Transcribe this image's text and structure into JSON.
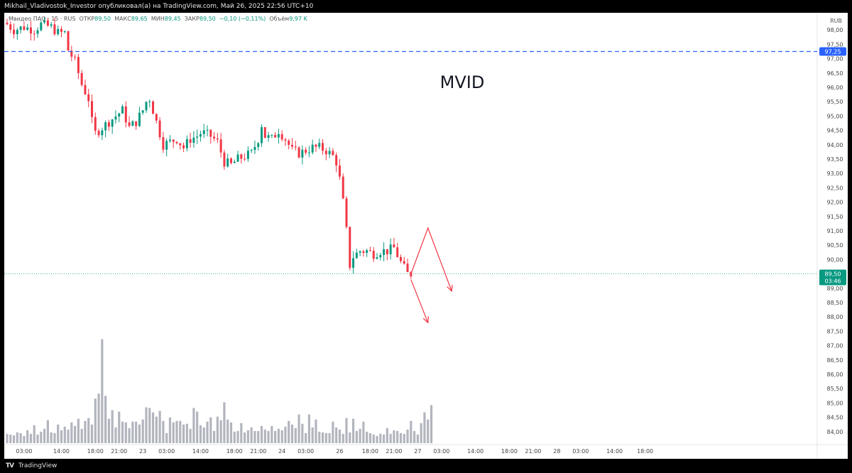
{
  "header": {
    "publisher_text": "Mikhail_Vladivostok_Investor опубликовал(а) на TradingView.com, Май 26, 2025 22:56 UTC+10"
  },
  "legend": {
    "symbol": "Мвидео ПАО · 15 · RUS",
    "open_label": "ОТКР",
    "open_value": "89,50",
    "high_label": "МАКС",
    "high_value": "89,65",
    "low_label": "МИН",
    "low_value": "89,45",
    "close_label": "ЗАКР",
    "close_value": "89,50",
    "change_value": "−0,10 (−0,11%)",
    "volume_label": "Объём",
    "volume_value": "9,97 K"
  },
  "currency": "RUB",
  "footer": {
    "logo": "TV",
    "brand": "TradingView"
  },
  "colors": {
    "up": "#089981",
    "down": "#f23645",
    "volume": "#b2b5be",
    "level_line": "#2962ff",
    "price_line": "#089981",
    "annotation": "#f23645"
  },
  "chart_data": {
    "type": "candlestick",
    "title": "MVID",
    "ylim": [
      83.6,
      98.5
    ],
    "yticks": [
      "98,00",
      "97,50",
      "97,00",
      "96,50",
      "96,00",
      "95,50",
      "95,00",
      "94,50",
      "94,00",
      "93,50",
      "93,00",
      "92,50",
      "92,00",
      "91,50",
      "91,00",
      "90,50",
      "90,00",
      "89,50",
      "89,00",
      "88,50",
      "88,00",
      "87,50",
      "87,00",
      "86,50",
      "86,00",
      "85,50",
      "85,00",
      "84,50",
      "84,00"
    ],
    "ytick_values": [
      98.0,
      97.5,
      97.0,
      96.5,
      96.0,
      95.5,
      95.0,
      94.5,
      94.0,
      93.5,
      93.0,
      92.5,
      92.0,
      91.5,
      91.0,
      90.5,
      90.0,
      89.5,
      89.0,
      88.5,
      88.0,
      87.5,
      87.0,
      86.5,
      86.0,
      85.5,
      85.0,
      84.5,
      84.0
    ],
    "xticks": [
      {
        "label": "03:00",
        "i": 5
      },
      {
        "label": "14:00",
        "i": 16
      },
      {
        "label": "18:00",
        "i": 26
      },
      {
        "label": "21:00",
        "i": 33
      },
      {
        "label": "23",
        "i": 40
      },
      {
        "label": "03:00",
        "i": 47
      },
      {
        "label": "14:00",
        "i": 57
      },
      {
        "label": "18:00",
        "i": 67
      },
      {
        "label": "21:00",
        "i": 74
      },
      {
        "label": "24",
        "i": 81
      },
      {
        "label": "03:00",
        "i": 88
      },
      {
        "label": "26",
        "i": 98
      },
      {
        "label": "18:00",
        "i": 107
      },
      {
        "label": "21:00",
        "i": 114
      },
      {
        "label": "27",
        "i": 121
      },
      {
        "label": "03:00",
        "i": 128
      },
      {
        "label": "14:00",
        "i": 138
      },
      {
        "label": "18:00",
        "i": 148
      },
      {
        "label": "21:00",
        "i": 155
      },
      {
        "label": "28",
        "i": 162
      },
      {
        "label": "03:00",
        "i": 169
      },
      {
        "label": "14:00",
        "i": 179
      },
      {
        "label": "18:00",
        "i": 188
      }
    ],
    "level_line": {
      "value": 97.25,
      "label": "97,25"
    },
    "last_price": {
      "value": 89.5,
      "label": "89,50",
      "countdown": "03:46"
    },
    "close_path": [
      [
        0,
        98.2
      ],
      [
        2,
        98.0
      ],
      [
        5,
        98.1
      ],
      [
        8,
        98.0
      ],
      [
        10,
        98.2
      ],
      [
        13,
        98.1
      ],
      [
        15,
        97.9
      ],
      [
        17,
        97.9
      ],
      [
        18,
        97.3
      ],
      [
        20,
        96.9
      ],
      [
        22,
        96.1
      ],
      [
        24,
        95.6
      ],
      [
        25,
        94.8
      ],
      [
        26,
        94.4
      ],
      [
        28,
        94.6
      ],
      [
        30,
        94.8
      ],
      [
        32,
        95.0
      ],
      [
        34,
        95.2
      ],
      [
        36,
        94.6
      ],
      [
        38,
        94.8
      ],
      [
        40,
        95.2
      ],
      [
        41,
        95.5
      ],
      [
        42,
        95.6
      ],
      [
        43,
        95.2
      ],
      [
        45,
        94.4
      ],
      [
        46,
        94.0
      ],
      [
        48,
        94.1
      ],
      [
        50,
        94.2
      ],
      [
        52,
        93.9
      ],
      [
        54,
        94.2
      ],
      [
        56,
        94.3
      ],
      [
        57,
        94.4
      ],
      [
        58,
        94.4
      ],
      [
        60,
        94.3
      ],
      [
        62,
        94.1
      ],
      [
        64,
        93.4
      ],
      [
        66,
        93.3
      ],
      [
        68,
        93.5
      ],
      [
        70,
        93.6
      ],
      [
        72,
        93.7
      ],
      [
        74,
        94.2
      ],
      [
        75,
        94.7
      ],
      [
        76,
        94.3
      ],
      [
        78,
        94.2
      ],
      [
        80,
        94.5
      ],
      [
        82,
        94.2
      ],
      [
        84,
        93.8
      ],
      [
        86,
        93.7
      ],
      [
        88,
        93.8
      ],
      [
        90,
        93.9
      ],
      [
        92,
        93.9
      ],
      [
        94,
        93.8
      ],
      [
        96,
        93.6
      ],
      [
        97,
        93.4
      ],
      [
        98,
        92.8
      ],
      [
        99,
        92.0
      ],
      [
        100,
        91.0
      ],
      [
        101,
        89.8
      ],
      [
        102,
        90.1
      ],
      [
        104,
        90.3
      ],
      [
        106,
        90.3
      ],
      [
        108,
        90.2
      ],
      [
        110,
        90.3
      ],
      [
        112,
        90.3
      ],
      [
        114,
        90.4
      ],
      [
        116,
        89.9
      ],
      [
        118,
        89.5
      ],
      [
        119,
        89.5
      ]
    ],
    "volume_heights": [
      1.3,
      1.2,
      1.1,
      1.5,
      1.4,
      1.0,
      1.8,
      1.3,
      2.5,
      1.2,
      1.6,
      2.0,
      3.2,
      1.5,
      1.4,
      2.6,
      1.8,
      2.3,
      1.9,
      2.9,
      2.4,
      3.4,
      2.0,
      3.1,
      3.5,
      2.6,
      6.2,
      6.9,
      14.5,
      6.6,
      3.4,
      4.6,
      2.2,
      4.4,
      3.0,
      2.9,
      2.1,
      3.0,
      3.0,
      2.6,
      3.3,
      5.0,
      4.9,
      4.3,
      3.7,
      4.5,
      3.1,
      1.4,
      3.6,
      2.9,
      3.1,
      3.1,
      2.6,
      2.7,
      2.0,
      4.9,
      4.4,
      2.5,
      2.2,
      3.0,
      3.6,
      1.7,
      3.7,
      3.2,
      5.7,
      3.3,
      2.9,
      1.6,
      1.7,
      2.8,
      1.5,
      1.8,
      2.2,
      1.7,
      1.7,
      2.4,
      1.9,
      1.7,
      2.4,
      1.7,
      2.0,
      1.8,
      2.3,
      3.1,
      2.6,
      2.1,
      4.0,
      2.7,
      1.4,
      4.0,
      2.2,
      3.3,
      1.6,
      1.5,
      1.4,
      1.4,
      3.0,
      2.2,
      1.9,
      1.3,
      3.5,
      1.5,
      3.4,
      1.7,
      2.0,
      3.0,
      1.6,
      1.4,
      1.2,
      1.0,
      1.3,
      1.2,
      2.1,
      1.3,
      1.8,
      1.7,
      1.4,
      1.3,
      1.9,
      3.1,
      1.7,
      1.2,
      2.8,
      4.3,
      3.3,
      5.3
    ],
    "annotations": {
      "label": "MVID",
      "up_path": [
        [
          119,
          89.5
        ],
        [
          124,
          91.1
        ],
        [
          131,
          88.9
        ]
      ],
      "down_path": [
        [
          119,
          89.3
        ],
        [
          124,
          87.8
        ]
      ]
    }
  }
}
